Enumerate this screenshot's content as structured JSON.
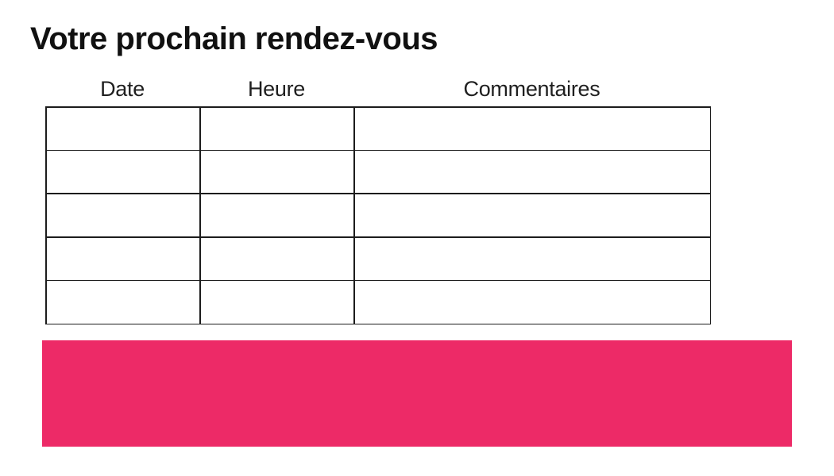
{
  "page": {
    "title": "Votre prochain rendez-vous"
  },
  "table": {
    "columns": [
      {
        "label": "Date"
      },
      {
        "label": "Heure"
      },
      {
        "label": "Commentaires"
      }
    ],
    "rows": [
      [
        "",
        "",
        ""
      ],
      [
        "",
        "",
        ""
      ],
      [
        "",
        "",
        ""
      ],
      [
        "",
        "",
        ""
      ],
      [
        "",
        "",
        ""
      ]
    ]
  },
  "colors": {
    "accent_pink": "#ED2A67",
    "table_border": "#1c1c1c",
    "text": "#111111",
    "background": "#ffffff"
  }
}
